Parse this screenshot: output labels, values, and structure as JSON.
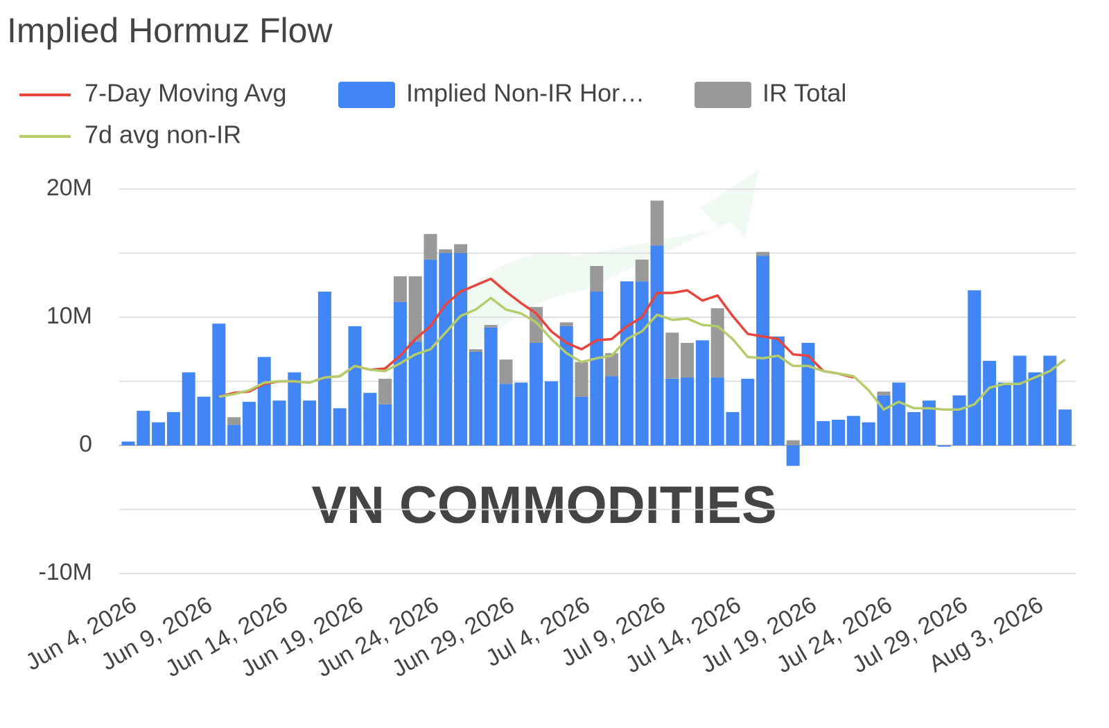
{
  "chart_data": {
    "type": "combo",
    "title": "Implied Hormuz Flow",
    "watermark": "VN COMMODITIES",
    "legend": "top",
    "grid": true,
    "categories": [
      "Jun 4, 2026",
      null,
      null,
      null,
      null,
      "Jun 9, 2026",
      null,
      null,
      null,
      null,
      "Jun 14, 2026",
      null,
      null,
      null,
      null,
      "Jun 19, 2026",
      null,
      null,
      null,
      null,
      "Jun 24, 2026",
      null,
      null,
      null,
      null,
      "Jun 29, 2026",
      null,
      null,
      null,
      null,
      "Jul 4, 2026",
      null,
      null,
      null,
      null,
      "Jul 9, 2026",
      null,
      null,
      null,
      null,
      "Jul 14, 2026",
      null,
      null,
      null,
      null,
      "Jul 19, 2026",
      null,
      null,
      null,
      null,
      "Jul 24, 2026",
      null,
      null,
      null,
      null,
      "Jul 29, 2026",
      null,
      null,
      null,
      null,
      "Aug 3, 2026",
      null,
      null
    ],
    "ylim": [
      -10500000.0,
      20500000.0
    ],
    "yticks": [
      {
        "value": -10000000.0,
        "label": "-10M"
      },
      {
        "value": 0,
        "label": "0"
      },
      {
        "value": 10000000.0,
        "label": "10M"
      },
      {
        "value": 20000000.0,
        "label": "20M"
      }
    ],
    "minor_yticks": [
      -5000000.0,
      5000000.0,
      15000000.0
    ],
    "series": [
      {
        "name": "7-Day Moving Avg",
        "type": "line",
        "color": "#e8453c",
        "values": [
          null,
          null,
          null,
          null,
          null,
          null,
          3800000.0,
          4100000.0,
          4200000.0,
          4800000.0,
          5000000.0,
          5000000.0,
          4900000.0,
          5300000.0,
          5400000.0,
          6200000.0,
          5900000.0,
          6000000.0,
          7000000.0,
          8300000.0,
          9300000.0,
          11000000.0,
          12000000.0,
          12500000.0,
          13000000.0,
          12000000.0,
          11100000.0,
          10300000.0,
          8900000.0,
          8000000.0,
          7500000.0,
          8200000.0,
          8300000.0,
          9300000.0,
          10000000.0,
          11900000.0,
          11900000.0,
          12100000.0,
          11300000.0,
          11700000.0,
          10100000.0,
          8700000.0,
          8500000.0,
          8300000.0,
          7100000.0,
          7000000.0,
          5800000.0,
          5600000.0,
          5300000.0,
          null,
          null,
          null,
          null,
          null,
          null,
          null,
          null,
          null,
          null,
          null,
          null,
          null,
          null
        ]
      },
      {
        "name": "Implied Non-IR Hor…",
        "type": "bar",
        "color": "#4285f4",
        "values": [
          300000.0,
          2700000.0,
          1800000.0,
          2600000.0,
          5700000.0,
          3800000.0,
          9500000.0,
          1600000.0,
          3400000.0,
          6900000.0,
          3500000.0,
          5700000.0,
          3500000.0,
          12000000.0,
          2900000.0,
          9300000.0,
          4100000.0,
          3200000.0,
          11200000.0,
          8100000.0,
          14500000.0,
          15000000.0,
          15000000.0,
          7300000.0,
          9200000.0,
          4800000.0,
          4900000.0,
          8000000.0,
          5000000.0,
          9300000.0,
          3800000.0,
          12000000.0,
          5400000.0,
          12800000.0,
          12800000.0,
          15600000.0,
          5200000.0,
          5300000.0,
          8200000.0,
          5300000.0,
          2600000.0,
          5200000.0,
          14800000.0,
          8500000.0,
          -1600000.0,
          8000000.0,
          1900000.0,
          2000000.0,
          2300000.0,
          1800000.0,
          3900000.0,
          4900000.0,
          2600000.0,
          3500000.0,
          -100000.0,
          3900000.0,
          12100000.0,
          6600000.0,
          4900000.0,
          7000000.0,
          5700000.0,
          7000000.0,
          2800000.0
        ]
      },
      {
        "name": "IR Total",
        "type": "bar",
        "color": "#999999",
        "values": [
          0,
          0,
          0,
          0,
          0,
          0,
          0,
          600000.0,
          0,
          0,
          0,
          0,
          0,
          0,
          0,
          0,
          0,
          2000000.0,
          2000000.0,
          5100000.0,
          2000000.0,
          300000.0,
          700000.0,
          200000.0,
          200000.0,
          1900000.0,
          0,
          2800000.0,
          0,
          300000.0,
          2700000.0,
          2000000.0,
          1800000.0,
          0,
          1700000.0,
          3500000.0,
          3600000.0,
          2700000.0,
          0,
          5400000.0,
          0,
          0,
          300000.0,
          0,
          400000.0,
          0,
          0,
          0,
          0,
          0,
          300000.0,
          0,
          0,
          0,
          0,
          0,
          0,
          0,
          0,
          0,
          0,
          0,
          0
        ]
      },
      {
        "name": "7d avg non-IR",
        "type": "line",
        "color": "#b5cc6b",
        "values": [
          null,
          null,
          null,
          null,
          null,
          null,
          3800000.0,
          4000000.0,
          4300000.0,
          4900000.0,
          5000000.0,
          5000000.0,
          4900000.0,
          5300000.0,
          5400000.0,
          6200000.0,
          5900000.0,
          5800000.0,
          6400000.0,
          7100000.0,
          7500000.0,
          8800000.0,
          10100000.0,
          10600000.0,
          11500000.0,
          10600000.0,
          10300000.0,
          9600000.0,
          8300000.0,
          7200000.0,
          6500000.0,
          6800000.0,
          7000000.0,
          8300000.0,
          8900000.0,
          10200000.0,
          9800000.0,
          9900000.0,
          9400000.0,
          9300000.0,
          8300000.0,
          6900000.0,
          6800000.0,
          7000000.0,
          6200000.0,
          6200000.0,
          5800000.0,
          5600000.0,
          5400000.0,
          4300000.0,
          2800000.0,
          3400000.0,
          2900000.0,
          2900000.0,
          2800000.0,
          2800000.0,
          3200000.0,
          4500000.0,
          4800000.0,
          4800000.0,
          5300000.0,
          5800000.0,
          6700000.0
        ]
      }
    ]
  }
}
